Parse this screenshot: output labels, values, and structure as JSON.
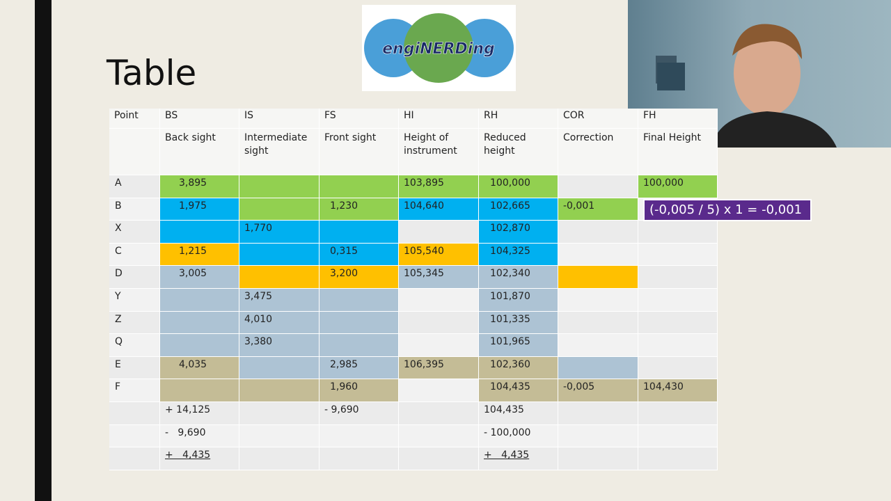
{
  "slide": {
    "title": "Table",
    "logo": "engiNERDing",
    "annotation": "(-0,005 / 5) x 1 = -0,001",
    "table": {
      "codes": [
        "Point",
        "BS",
        "IS",
        "FS",
        "HI",
        "RH",
        "COR",
        "FH"
      ],
      "descriptions": [
        null,
        "Back sight",
        "Intermediate sight",
        "Front sight",
        "Height of instrument",
        "Reduced height",
        "Correction",
        "Final Height"
      ],
      "rows": [
        [
          "A",
          "3,895",
          null,
          null,
          "103,895",
          "100,000",
          null,
          "100,000"
        ],
        [
          "B",
          "1,975",
          null,
          "1,230",
          "104,640",
          "102,665",
          "-0,001",
          null
        ],
        [
          "X",
          null,
          "1,770",
          null,
          null,
          "102,870",
          null,
          null
        ],
        [
          "C",
          "1,215",
          null,
          "0,315",
          "105,540",
          "104,325",
          null,
          null
        ],
        [
          "D",
          "3,005",
          null,
          "3,200",
          "105,345",
          "102,340",
          null,
          null
        ],
        [
          "Y",
          null,
          "3,475",
          null,
          null,
          "101,870",
          null,
          null
        ],
        [
          "Z",
          null,
          "4,010",
          null,
          null,
          "101,335",
          null,
          null
        ],
        [
          "Q",
          null,
          "3,380",
          null,
          null,
          "101,965",
          null,
          null
        ],
        [
          "E",
          "4,035",
          null,
          "2,985",
          "106,395",
          "102,360",
          null,
          null
        ],
        [
          "F",
          null,
          null,
          "1,960",
          null,
          "104,435",
          "-0,005",
          "104,430"
        ]
      ],
      "totals": [
        [
          null,
          "+ 14,125",
          null,
          "- 9,690",
          null,
          "104,435",
          null,
          null
        ],
        [
          null,
          "-   9,690",
          null,
          null,
          null,
          "- 100,000",
          null,
          null
        ],
        [
          null,
          "+   4,435",
          null,
          null,
          null,
          "+   4,435",
          null,
          null
        ]
      ]
    }
  }
}
